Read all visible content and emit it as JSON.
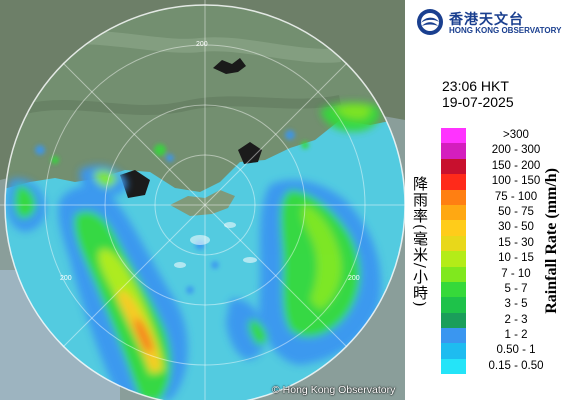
{
  "map": {
    "range_labels": [
      "200",
      "200",
      "200"
    ],
    "copyright_icon": "copyright-icon",
    "copyright": "Hong Kong Observatory"
  },
  "panel": {
    "logo": {
      "icon": "observatory-logo-icon",
      "name_zh": "香港天文台",
      "name_en": "HONG KONG OBSERVATORY"
    },
    "time": "23:06 HKT",
    "date": "19-07-2025",
    "legend": {
      "title_zh": "降雨率(毫米/小時)",
      "title_en": "Rainfall Rate (mm/h)",
      "items": [
        {
          "label": ">300",
          "color": "#ff33ff"
        },
        {
          "label": "200 - 300",
          "color": "#d41ebe"
        },
        {
          "label": "150 - 200",
          "color": "#c8102e"
        },
        {
          "label": "100 - 150",
          "color": "#ff2a1a"
        },
        {
          "label": "75 - 100",
          "color": "#ff7f12"
        },
        {
          "label": "50 - 75",
          "color": "#ffa812"
        },
        {
          "label": "30 - 50",
          "color": "#ffcc1a"
        },
        {
          "label": "15 - 30",
          "color": "#e8d81a"
        },
        {
          "label": "10 - 15",
          "color": "#b4ec18"
        },
        {
          "label": "7 - 10",
          "color": "#80e81e"
        },
        {
          "label": "5 - 7",
          "color": "#36d93a"
        },
        {
          "label": "3 - 5",
          "color": "#1ec24a"
        },
        {
          "label": "2 - 3",
          "color": "#1a9e5a"
        },
        {
          "label": "1 - 2",
          "color": "#3a96f0"
        },
        {
          "label": "0.50 - 1",
          "color": "#1ebcf0"
        },
        {
          "label": "0.15 - 0.50",
          "color": "#24e4f8"
        }
      ]
    }
  }
}
